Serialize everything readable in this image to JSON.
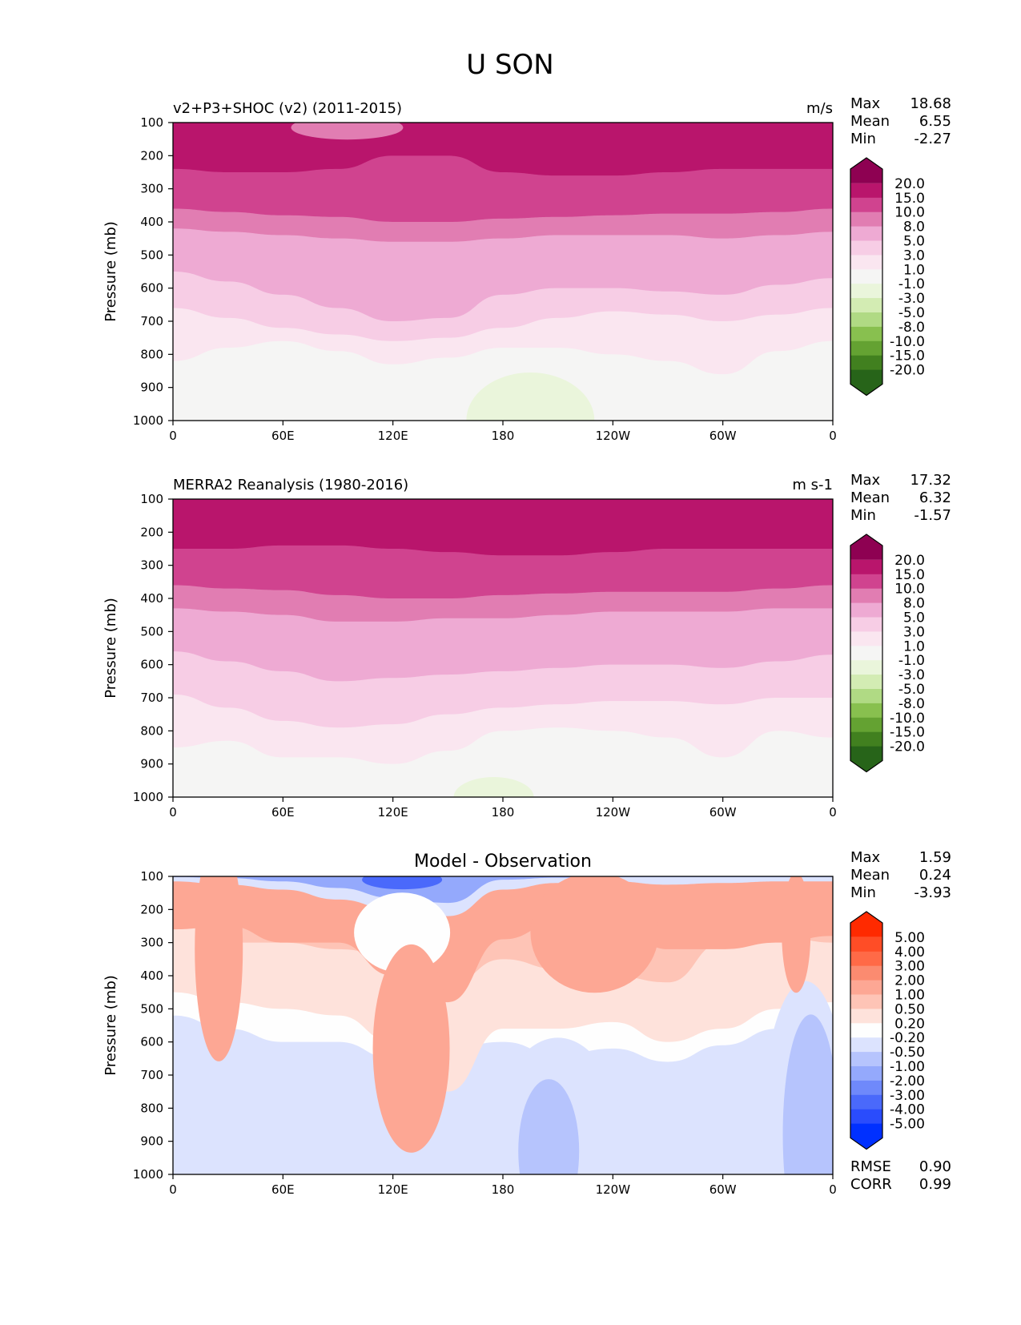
{
  "figure_title": "U SON",
  "chart_data": [
    {
      "type": "heatmap",
      "subtype": "filled-contour",
      "title_left": "v2+P3+SHOC (v2) (2011-2015)",
      "title_right": "m/s",
      "title_center": "",
      "xlabel": "",
      "ylabel": "Pressure (mb)",
      "x_ticks": [
        "0",
        "60E",
        "120E",
        "180",
        "120W",
        "60W",
        "0"
      ],
      "x_range": [
        0,
        360
      ],
      "y_ticks": [
        "100",
        "200",
        "300",
        "400",
        "500",
        "600",
        "700",
        "800",
        "900",
        "1000"
      ],
      "y_range": [
        100,
        1000
      ],
      "y_inverted": true,
      "stats": [
        {
          "label": "Max",
          "value": "18.68"
        },
        {
          "label": "Mean",
          "value": "6.55"
        },
        {
          "label": "Min",
          "value": "-2.27"
        }
      ],
      "colorbar": {
        "levels": [
          "20.0",
          "15.0",
          "10.0",
          "8.0",
          "5.0",
          "3.0",
          "1.0",
          "-1.0",
          "-3.0",
          "-5.0",
          "-8.0",
          "-10.0",
          "-15.0",
          "-20.0"
        ],
        "colors": [
          "#8e0152",
          "#b9156c",
          "#d0438f",
          "#e17db2",
          "#eeaad3",
          "#f7cde5",
          "#fae6f0",
          "#f5f5f4",
          "#eaf5db",
          "#d3ecb3",
          "#b0da84",
          "#88c04f",
          "#64a232",
          "#41801f",
          "#276419"
        ]
      },
      "bands": [
        {
          "level_index": 1,
          "top": [
            130,
            130,
            130,
            130,
            130,
            130,
            130,
            130,
            130
          ],
          "bottom": [
            260,
            250,
            245,
            240,
            240,
            240,
            245,
            250,
            255
          ]
        },
        {
          "level_index": 0,
          "top": [
            175,
            185,
            200,
            210,
            175,
            165,
            170,
            175,
            170
          ],
          "bottom": [
            205,
            210,
            205,
            210,
            210,
            210,
            205,
            210,
            210
          ]
        }
      ]
    },
    {
      "type": "heatmap",
      "subtype": "filled-contour",
      "title_left": "MERRA2 Reanalysis (1980-2016)",
      "title_right": "m s-1",
      "title_center": "",
      "xlabel": "",
      "ylabel": "Pressure (mb)",
      "x_ticks": [
        "0",
        "60E",
        "120E",
        "180",
        "120W",
        "60W",
        "0"
      ],
      "x_range": [
        0,
        360
      ],
      "y_ticks": [
        "100",
        "200",
        "300",
        "400",
        "500",
        "600",
        "700",
        "800",
        "900",
        "1000"
      ],
      "y_range": [
        100,
        1000
      ],
      "y_inverted": true,
      "stats": [
        {
          "label": "Max",
          "value": "17.32"
        },
        {
          "label": "Mean",
          "value": "6.32"
        },
        {
          "label": "Min",
          "value": "-1.57"
        }
      ],
      "colorbar": {
        "levels": [
          "20.0",
          "15.0",
          "10.0",
          "8.0",
          "5.0",
          "3.0",
          "1.0",
          "-1.0",
          "-3.0",
          "-5.0",
          "-8.0",
          "-10.0",
          "-15.0",
          "-20.0"
        ],
        "colors": [
          "#8e0152",
          "#b9156c",
          "#d0438f",
          "#e17db2",
          "#eeaad3",
          "#f7cde5",
          "#fae6f0",
          "#f5f5f4",
          "#eaf5db",
          "#d3ecb3",
          "#b0da84",
          "#88c04f",
          "#64a232",
          "#41801f",
          "#276419"
        ]
      }
    },
    {
      "type": "heatmap",
      "subtype": "filled-contour",
      "title_left": "",
      "title_right": "",
      "title_center": "Model - Observation",
      "xlabel": "",
      "ylabel": "Pressure (mb)",
      "x_ticks": [
        "0",
        "60E",
        "120E",
        "180",
        "120W",
        "60W",
        "0"
      ],
      "x_range": [
        0,
        360
      ],
      "y_ticks": [
        "100",
        "200",
        "300",
        "400",
        "500",
        "600",
        "700",
        "800",
        "900",
        "1000"
      ],
      "y_range": [
        100,
        1000
      ],
      "y_inverted": true,
      "stats": [
        {
          "label": "Max",
          "value": "1.59"
        },
        {
          "label": "Mean",
          "value": "0.24"
        },
        {
          "label": "Min",
          "value": "-3.93"
        }
      ],
      "bottom_stats": [
        {
          "label": "RMSE",
          "value": "0.90"
        },
        {
          "label": "CORR",
          "value": "0.99"
        }
      ],
      "colorbar": {
        "levels": [
          "5.00",
          "4.00",
          "3.00",
          "2.00",
          "1.00",
          "0.50",
          "0.20",
          "-0.20",
          "-0.50",
          "-1.00",
          "-2.00",
          "-3.00",
          "-4.00",
          "-5.00"
        ],
        "colors": [
          "#ff2a00",
          "#ff4d26",
          "#ff6a47",
          "#fb8b70",
          "#fda794",
          "#fec4b6",
          "#fee2db",
          "#fefefe",
          "#dce3fe",
          "#b6c4fd",
          "#94a9fc",
          "#6f89fb",
          "#4a69fb",
          "#2a4cfc",
          "#0030ff"
        ]
      }
    }
  ]
}
